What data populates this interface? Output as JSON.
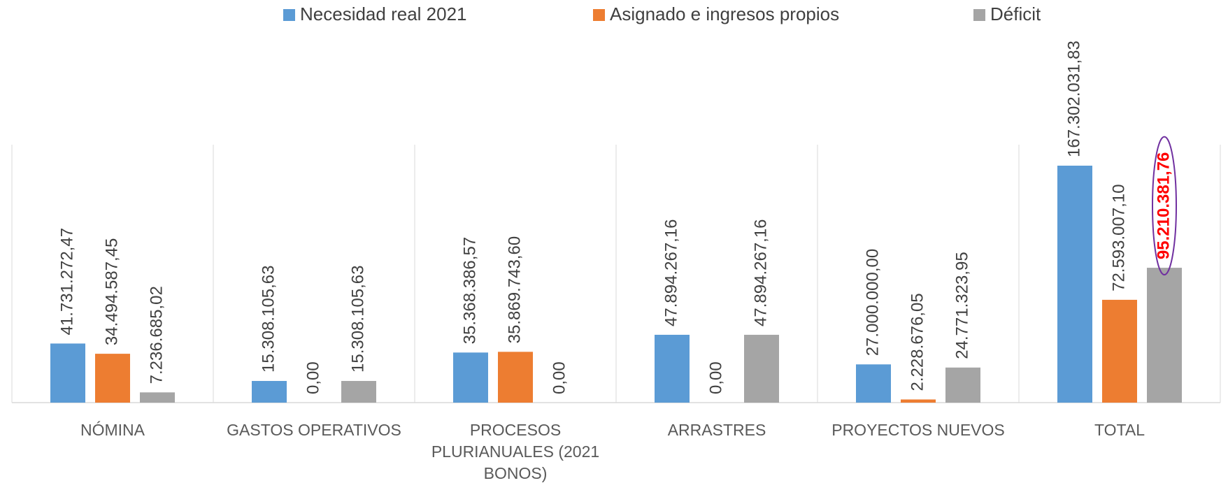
{
  "chart_data": {
    "type": "bar",
    "categories": [
      "NÓMINA",
      "GASTOS OPERATIVOS",
      "PROCESOS PLURIANUALES (2021 BONOS)",
      "ARRASTRES",
      "PROYECTOS NUEVOS",
      "TOTAL"
    ],
    "series": [
      {
        "name": "Necesidad real 2021",
        "color": "#5b9bd5",
        "values": [
          41731272.47,
          15308105.63,
          35368386.57,
          47894267.16,
          27000000.0,
          167302031.83
        ],
        "value_labels": [
          "41.731.272,47",
          "15.308.105,63",
          "35.368.386,57",
          "47.894.267,16",
          "27.000.000,00",
          "167.302.031,83"
        ]
      },
      {
        "name": "Asignado e ingresos propios",
        "color": "#ed7d31",
        "values": [
          34494587.45,
          0.0,
          35869743.6,
          0.0,
          2228676.05,
          72593007.1
        ],
        "value_labels": [
          "34.494.587,45",
          "0,00",
          "35.869.743,60",
          "0,00",
          "2.228.676,05",
          "72.593.007,10"
        ]
      },
      {
        "name": "Déficit",
        "color": "#a5a5a5",
        "values": [
          7236685.02,
          15308105.63,
          0.0,
          47894267.16,
          24771323.95,
          95210381.76
        ],
        "value_labels": [
          "7.236.685,02",
          "15.308.105,63",
          "0,00",
          "47.894.267,16",
          "24.771.323,95",
          "95.210.381,76"
        ]
      }
    ],
    "legend": "top"
  }
}
